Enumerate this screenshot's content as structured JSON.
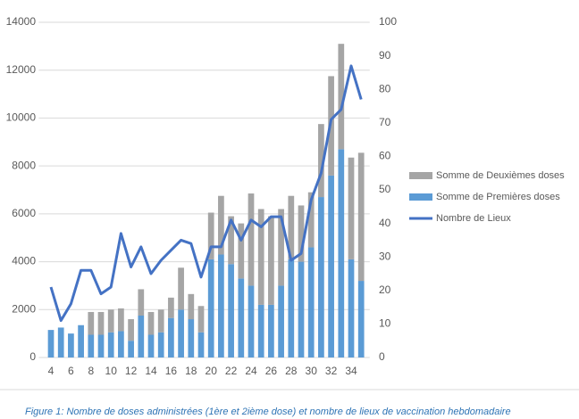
{
  "chart_data": {
    "type": "bar",
    "stacked": true,
    "categories": [
      4,
      null,
      6,
      null,
      8,
      null,
      10,
      null,
      12,
      null,
      14,
      null,
      16,
      null,
      18,
      null,
      20,
      null,
      22,
      null,
      24,
      null,
      26,
      null,
      28,
      null,
      30,
      null,
      32,
      null,
      34,
      null
    ],
    "series": [
      {
        "name": "Somme de Premières doses",
        "color": "#5b9bd5",
        "values": [
          1150,
          1250,
          1000,
          1350,
          950,
          950,
          1050,
          1100,
          700,
          1750,
          950,
          1050,
          1650,
          2000,
          1600,
          1050,
          4100,
          4300,
          3900,
          3300,
          3000,
          2200,
          2200,
          3000,
          4100,
          4000,
          4600,
          6700,
          7600,
          8700,
          4100,
          3200
        ]
      },
      {
        "name": "Somme de Deuxièmes doses",
        "color": "#a5a5a5",
        "values": [
          0,
          0,
          0,
          0,
          950,
          950,
          950,
          950,
          900,
          1100,
          950,
          950,
          850,
          1750,
          1050,
          1100,
          1950,
          2450,
          2000,
          2300,
          3850,
          4000,
          3700,
          3200,
          2650,
          2350,
          2300,
          3050,
          4150,
          4400,
          4250,
          5350
        ]
      },
      {
        "name": "Nombre de Lieux",
        "color": "#4472c4",
        "type": "line",
        "axis": "y2",
        "values": [
          21,
          11,
          16,
          26,
          26,
          19,
          21,
          37,
          27,
          33,
          25,
          29,
          32,
          35,
          34,
          24,
          33,
          33,
          41,
          35,
          41,
          39,
          42,
          42,
          29,
          31,
          47,
          55,
          71,
          74,
          87,
          77
        ]
      }
    ],
    "ylim": [
      0,
      14000
    ],
    "yticks": [
      0,
      2000,
      4000,
      6000,
      8000,
      10000,
      12000,
      14000
    ],
    "y2lim": [
      0,
      100
    ],
    "y2ticks": [
      0,
      10,
      20,
      30,
      40,
      50,
      60,
      70,
      80,
      90,
      100
    ],
    "grid": true,
    "legend": "right",
    "caption": "Figure 1: Nombre de doses administrées (1ère et 2ième dose) et nombre de lieux de vaccination hebdomadaire"
  }
}
